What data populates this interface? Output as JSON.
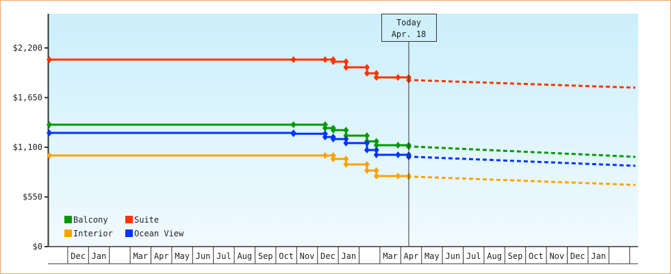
{
  "chart_data": {
    "type": "line",
    "title": "",
    "xlabel": "",
    "ylabel": "",
    "ylim": [
      0,
      2200
    ],
    "y_ticks": [
      0,
      550,
      1100,
      1650,
      2200
    ],
    "y_tick_labels": [
      "$0",
      "$550",
      "$1,100",
      "$1,650",
      "$2,200"
    ],
    "x_tick_labels": [
      "",
      "Dec",
      "Jan",
      "",
      "Mar",
      "Apr",
      "May",
      "Jun",
      "Jul",
      "Aug",
      "Sep",
      "Oct",
      "Nov",
      "Dec",
      "Jan",
      "",
      "Mar",
      "Apr",
      "May",
      "Jun",
      "Jul",
      "Aug",
      "Sep",
      "Oct",
      "Nov",
      "Dec",
      "Jan",
      "",
      ""
    ],
    "today": {
      "line1": "Today",
      "line2": "Apr. 18"
    },
    "legend_position": "bottom-left",
    "grid": false,
    "series": [
      {
        "name": "Balcony",
        "color": "#009900",
        "points": [
          [
            "2023-11-02",
            1350
          ],
          [
            "2024-10-29",
            1350
          ],
          [
            "2024-12-15",
            1312
          ],
          [
            "2024-12-27",
            1290
          ],
          [
            "2025-01-15",
            1229
          ],
          [
            "2025-02-15",
            1165
          ],
          [
            "2025-03-01",
            1123
          ],
          [
            "2025-04-02",
            1123
          ],
          [
            "2025-04-18",
            1107
          ]
        ],
        "forecast": [
          [
            "2025-04-18",
            1107
          ],
          [
            "2026-03-20",
            994
          ]
        ]
      },
      {
        "name": "Suite",
        "color": "#ff3300",
        "points": [
          [
            "2023-11-02",
            2071
          ],
          [
            "2024-10-29",
            2071
          ],
          [
            "2024-12-15",
            2071
          ],
          [
            "2024-12-27",
            2048
          ],
          [
            "2025-01-15",
            1986
          ],
          [
            "2025-02-15",
            1919
          ],
          [
            "2025-03-01",
            1874
          ],
          [
            "2025-04-02",
            1874
          ],
          [
            "2025-04-18",
            1843
          ]
        ],
        "forecast": [
          [
            "2025-04-18",
            1843
          ],
          [
            "2026-03-20",
            1760
          ]
        ]
      },
      {
        "name": "Interior",
        "color": "#ffa200",
        "points": [
          [
            "2023-11-02",
            1009
          ],
          [
            "2024-12-15",
            1009
          ],
          [
            "2024-12-27",
            971
          ],
          [
            "2025-01-15",
            910
          ],
          [
            "2025-02-15",
            842
          ],
          [
            "2025-03-01",
            781
          ],
          [
            "2025-04-02",
            781
          ],
          [
            "2025-04-18",
            774
          ]
        ],
        "forecast": [
          [
            "2025-04-18",
            774
          ],
          [
            "2026-03-20",
            683
          ]
        ]
      },
      {
        "name": "Ocean View",
        "color": "#0033ff",
        "points": [
          [
            "2023-11-02",
            1259
          ],
          [
            "2024-10-29",
            1250
          ],
          [
            "2024-12-15",
            1214
          ],
          [
            "2024-12-27",
            1191
          ],
          [
            "2025-01-15",
            1146
          ],
          [
            "2025-02-15",
            1070
          ],
          [
            "2025-03-01",
            1017
          ],
          [
            "2025-04-02",
            1017
          ],
          [
            "2025-04-18",
            994
          ]
        ],
        "forecast": [
          [
            "2025-04-18",
            994
          ],
          [
            "2026-03-20",
            895
          ]
        ]
      }
    ]
  }
}
